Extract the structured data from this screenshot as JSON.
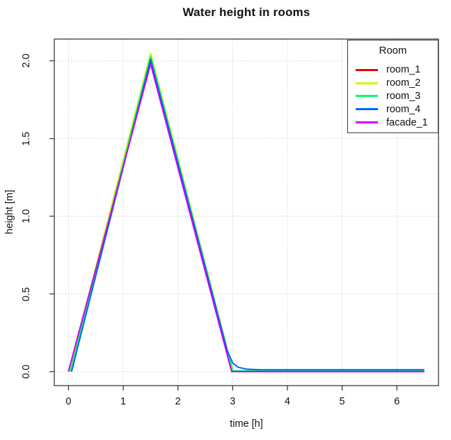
{
  "title": "Water height in rooms",
  "chart_data": {
    "type": "line",
    "title": "Water height in rooms",
    "xlabel": "time [h]",
    "ylabel": "height [m]",
    "xlim": [
      -0.26,
      6.76
    ],
    "ylim": [
      -0.09,
      2.14
    ],
    "x_ticks": [
      0,
      1,
      2,
      3,
      4,
      5,
      6
    ],
    "x_tick_labels": [
      "0",
      "1",
      "2",
      "3",
      "4",
      "5",
      "6"
    ],
    "y_ticks": [
      0,
      0.5,
      1.0,
      1.5,
      2.0
    ],
    "y_tick_labels": [
      "0.0",
      "0.5",
      "1.0",
      "1.5",
      "2.0"
    ],
    "grid": true,
    "legend_title": "Room",
    "legend_position": "topright",
    "series": [
      {
        "name": "room_1",
        "color": "#E60000",
        "points": [
          [
            0,
            0
          ],
          [
            1.5,
            2.0
          ],
          [
            3.0,
            0
          ],
          [
            6.5,
            0
          ]
        ]
      },
      {
        "name": "room_2",
        "color": "#CCFF00",
        "points": [
          [
            0.01,
            0
          ],
          [
            1.5,
            2.05
          ],
          [
            3.01,
            0
          ],
          [
            6.5,
            0
          ]
        ]
      },
      {
        "name": "room_3",
        "color": "#00FF66",
        "points": [
          [
            0.035,
            0
          ],
          [
            1.5,
            2.03
          ],
          [
            3.0,
            0.005
          ],
          [
            6.5,
            0.005
          ]
        ]
      },
      {
        "name": "room_4",
        "color": "#0066FF",
        "points": [
          [
            0.055,
            0
          ],
          [
            1.5,
            2.01
          ],
          [
            2.9,
            0.135
          ],
          [
            3.0,
            0.055
          ],
          [
            3.1,
            0.028
          ],
          [
            3.25,
            0.016
          ],
          [
            3.5,
            0.012
          ],
          [
            6.5,
            0.012
          ]
        ]
      },
      {
        "name": "facade_1",
        "color": "#CC00FF",
        "points": [
          [
            0,
            0
          ],
          [
            1.5,
            1.98
          ],
          [
            2.98,
            0
          ],
          [
            6.5,
            0
          ]
        ]
      }
    ]
  },
  "colors": {
    "grid": "#CFCFCF",
    "axis": "#3a3a3a",
    "text": "#111111",
    "plot_bg": "#FFFFFF"
  }
}
